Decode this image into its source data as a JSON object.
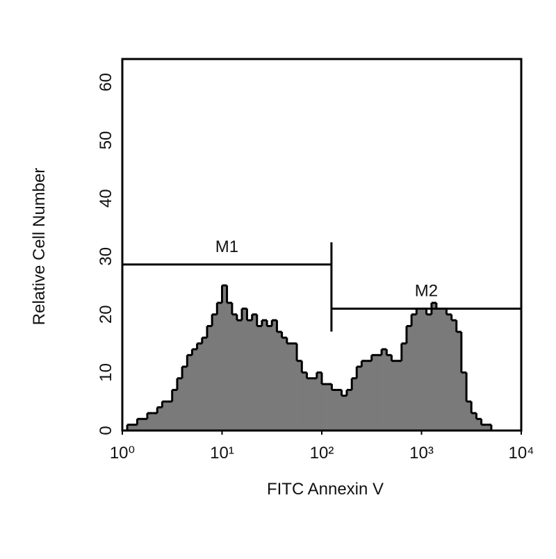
{
  "chart_data": {
    "type": "histogram",
    "xlabel": "FITC Annexin V",
    "ylabel": "Relative Cell Number",
    "log_x": true,
    "xlim": [
      1,
      10000
    ],
    "ylim": [
      0,
      64
    ],
    "xticks": [
      {
        "value": 1,
        "label": "10⁰"
      },
      {
        "value": 10,
        "label": "10¹"
      },
      {
        "value": 100,
        "label": "10²"
      },
      {
        "value": 1000,
        "label": "10³"
      },
      {
        "value": 10000,
        "label": "10⁴"
      }
    ],
    "yticks": [
      0,
      10,
      20,
      30,
      40,
      50,
      60
    ],
    "color": "#7a7a7a",
    "edge_color": "#000000",
    "bins": [
      1,
      1.12,
      1.26,
      1.41,
      1.58,
      1.78,
      2,
      2.24,
      2.51,
      2.82,
      3.16,
      3.55,
      3.98,
      4.47,
      5.01,
      5.62,
      6.31,
      7.08,
      7.94,
      8.91,
      10,
      11.2,
      12.6,
      14.1,
      15.8,
      17.8,
      20,
      22.4,
      25.1,
      28.2,
      31.6,
      35.5,
      39.8,
      44.7,
      50.1,
      56.2,
      63.1,
      70.8,
      79.4,
      89.1,
      100,
      112,
      126,
      141,
      158,
      178,
      200,
      224,
      251,
      282,
      316,
      355,
      398,
      447,
      501,
      562,
      631,
      708,
      794,
      891,
      1000,
      1120,
      1260,
      1410,
      1580,
      1780,
      2000,
      2240,
      2510,
      2820,
      3160,
      3550,
      3980,
      4470,
      5010,
      5620,
      6310,
      7080,
      7940,
      8910,
      10000
    ],
    "values": [
      0,
      1,
      1,
      2,
      2,
      3,
      3,
      4,
      5,
      5,
      7,
      9,
      11,
      13,
      14,
      15,
      16,
      18,
      20,
      22,
      25,
      22,
      20,
      19,
      21,
      19,
      20,
      18,
      19,
      18,
      19,
      17,
      16,
      15,
      15,
      12,
      10,
      9,
      9,
      10,
      8,
      8,
      7,
      7,
      6,
      7,
      9,
      11,
      12,
      12,
      13,
      13,
      14,
      13,
      12,
      12,
      15,
      18,
      20,
      21,
      21,
      20,
      22,
      21,
      21,
      20,
      19,
      17,
      10,
      5,
      3,
      2,
      1,
      1,
      0,
      0,
      0,
      0,
      0,
      0
    ],
    "markers": [
      {
        "label": "M1",
        "x": [
          1,
          125
        ],
        "y": 28.6
      },
      {
        "label": "M2",
        "x": [
          125,
          10000
        ],
        "y": 21
      }
    ]
  }
}
